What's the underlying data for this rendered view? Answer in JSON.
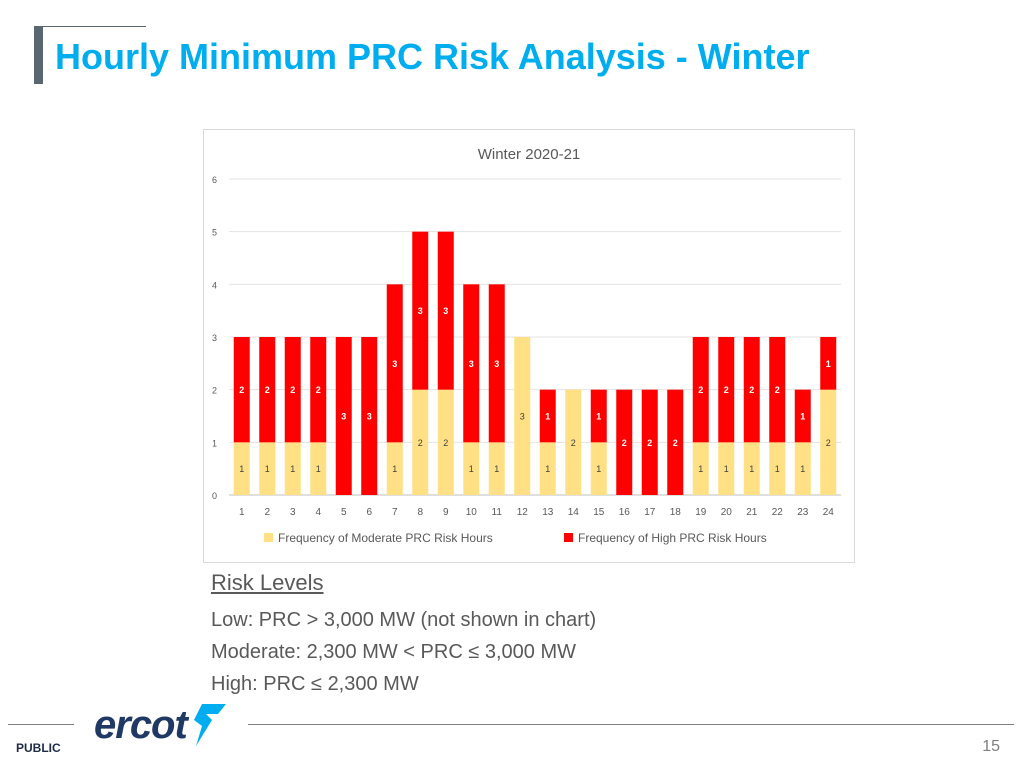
{
  "slide": {
    "title": "Hourly Minimum PRC Risk Analysis - Winter",
    "footer_label": "PUBLIC",
    "page_number": "15",
    "logo_text": "ercot"
  },
  "risk_levels": {
    "heading": "Risk Levels",
    "lines": [
      "Low: PRC > 3,000 MW (not shown in chart)",
      "Moderate: 2,300 MW < PRC ≤ 3,000 MW",
      "High: PRC ≤ 2,300 MW"
    ]
  },
  "colors": {
    "title": "#00aeef",
    "moderate": "#ffe084",
    "high": "#ff0000"
  },
  "chart_data": {
    "type": "bar",
    "stacked": true,
    "title": "Winter 2020-21",
    "xlabel": "",
    "ylabel": "",
    "ylim": [
      0,
      6
    ],
    "yticks": [
      0,
      1,
      2,
      3,
      4,
      5,
      6
    ],
    "grid": true,
    "legend_position": "bottom",
    "categories": [
      "1",
      "2",
      "3",
      "4",
      "5",
      "6",
      "7",
      "8",
      "9",
      "10",
      "11",
      "12",
      "13",
      "14",
      "15",
      "16",
      "17",
      "18",
      "19",
      "20",
      "21",
      "22",
      "23",
      "24"
    ],
    "series": [
      {
        "name": "Frequency of Moderate PRC Risk Hours",
        "color": "#ffe084",
        "values": [
          1,
          1,
          1,
          1,
          0,
          0,
          1,
          2,
          2,
          1,
          1,
          3,
          1,
          2,
          1,
          0,
          0,
          0,
          1,
          1,
          1,
          1,
          1,
          2
        ]
      },
      {
        "name": "Frequency of High PRC Risk Hours",
        "color": "#ff0000",
        "values": [
          2,
          2,
          2,
          2,
          3,
          3,
          3,
          3,
          3,
          3,
          3,
          0,
          1,
          0,
          1,
          2,
          2,
          2,
          2,
          2,
          2,
          2,
          1,
          1
        ]
      }
    ]
  }
}
